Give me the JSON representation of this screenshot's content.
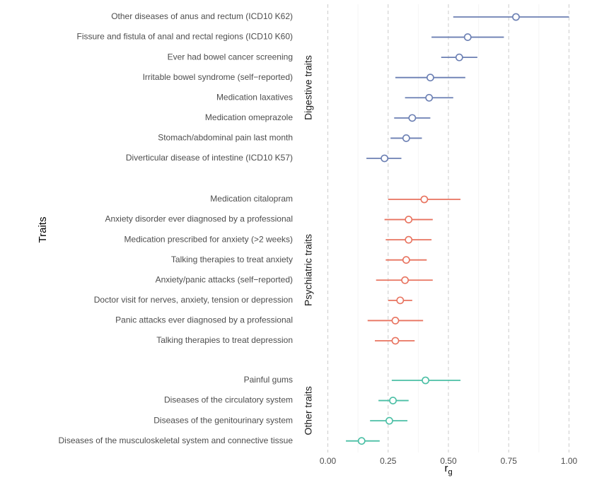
{
  "chart_data": {
    "type": "scatter",
    "subtype": "forest-plot",
    "title": "",
    "xlabel": "r_g",
    "xlabel_main": "r",
    "xlabel_sub": "g",
    "ylabel": "Traits",
    "xlim": [
      0,
      1
    ],
    "xticks": [
      0,
      0.25,
      0.5,
      0.75,
      1.0
    ],
    "xtick_labels": [
      "0.00",
      "0.25",
      "0.50",
      "0.75",
      "1.00"
    ],
    "grid": "vertical dashed",
    "legend": "none",
    "groups": [
      {
        "name": "Digestive traits",
        "color": "#6B7FB3",
        "rows": [
          {
            "label": "Other diseases of anus and rectum (ICD10 K62)",
            "rg": 0.78,
            "lo": 0.52,
            "hi": 1.0
          },
          {
            "label": "Fissure and fistula of anal and rectal regions (ICD10 K60)",
            "rg": 0.58,
            "lo": 0.43,
            "hi": 0.73
          },
          {
            "label": "Ever had bowel cancer screening",
            "rg": 0.545,
            "lo": 0.47,
            "hi": 0.62
          },
          {
            "label": "Irritable bowel syndrome (self−reported)",
            "rg": 0.425,
            "lo": 0.28,
            "hi": 0.57
          },
          {
            "label": "Medication laxatives",
            "rg": 0.42,
            "lo": 0.32,
            "hi": 0.52
          },
          {
            "label": "Medication omeprazole",
            "rg": 0.35,
            "lo": 0.275,
            "hi": 0.425
          },
          {
            "label": "Stomach/abdominal pain last month",
            "rg": 0.325,
            "lo": 0.26,
            "hi": 0.39
          },
          {
            "label": "Diverticular disease of intestine (ICD10 K57)",
            "rg": 0.235,
            "lo": 0.16,
            "hi": 0.305
          }
        ]
      },
      {
        "name": "Psychiatric traits",
        "color": "#E8735F",
        "rows": [
          {
            "label": "Medication citalopram",
            "rg": 0.4,
            "lo": 0.25,
            "hi": 0.55
          },
          {
            "label": "Anxiety disorder ever diagnosed by a professional",
            "rg": 0.335,
            "lo": 0.235,
            "hi": 0.435
          },
          {
            "label": "Medication prescribed for anxiety (>2 weeks)",
            "rg": 0.335,
            "lo": 0.24,
            "hi": 0.43
          },
          {
            "label": "Talking therapies to treat anxiety",
            "rg": 0.325,
            "lo": 0.24,
            "hi": 0.41
          },
          {
            "label": "Anxiety/panic attacks (self−reported)",
            "rg": 0.32,
            "lo": 0.2,
            "hi": 0.435
          },
          {
            "label": "Doctor visit for nerves, anxiety, tension or depression",
            "rg": 0.3,
            "lo": 0.25,
            "hi": 0.35
          },
          {
            "label": "Panic attacks ever diagnosed by a professional",
            "rg": 0.28,
            "lo": 0.165,
            "hi": 0.395
          },
          {
            "label": "Talking therapies to treat depression",
            "rg": 0.28,
            "lo": 0.195,
            "hi": 0.36
          }
        ]
      },
      {
        "name": "Other traits",
        "color": "#4BBFA5",
        "rows": [
          {
            "label": "Painful gums",
            "rg": 0.405,
            "lo": 0.265,
            "hi": 0.55
          },
          {
            "label": "Diseases of the circulatory system",
            "rg": 0.27,
            "lo": 0.21,
            "hi": 0.335
          },
          {
            "label": "Diseases of the genitourinary system",
            "rg": 0.255,
            "lo": 0.175,
            "hi": 0.33
          },
          {
            "label": "Diseases of the musculoskeletal system and connective tissue",
            "rg": 0.14,
            "lo": 0.075,
            "hi": 0.215
          }
        ]
      }
    ]
  }
}
